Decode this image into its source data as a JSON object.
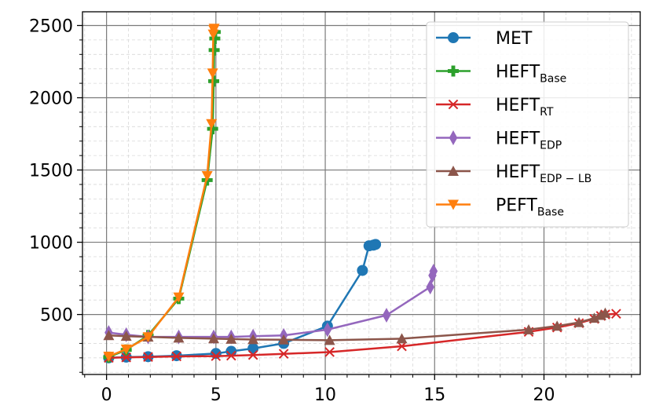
{
  "chart_data": {
    "type": "line",
    "title": "",
    "xlabel": "",
    "ylabel": "",
    "xlim": [
      -1.1,
      24.4
    ],
    "ylim": [
      85,
      2595
    ],
    "xticks": [
      0,
      5,
      10,
      15,
      20
    ],
    "yticks": [
      500,
      1000,
      1500,
      2000,
      2500
    ],
    "x_tick_labels": [
      "0",
      "5",
      "10",
      "15",
      "20"
    ],
    "y_tick_labels": [
      "500",
      "1000",
      "1500",
      "2000",
      "2500"
    ],
    "x_minor_step": 1,
    "y_minor_step": 100,
    "grid": true,
    "legend_position": "top-right",
    "series": [
      {
        "name": "MET",
        "name_sub": "",
        "color": "#1f77b4",
        "marker": "circle",
        "points": [
          [
            0.1,
            200
          ],
          [
            0.9,
            205
          ],
          [
            1.9,
            208
          ],
          [
            3.2,
            215
          ],
          [
            5.0,
            230
          ],
          [
            5.7,
            245
          ],
          [
            6.7,
            265
          ],
          [
            8.1,
            300
          ],
          [
            10.1,
            420
          ],
          [
            11.7,
            805
          ],
          [
            12.0,
            975
          ],
          [
            12.2,
            980
          ],
          [
            12.3,
            985
          ]
        ]
      },
      {
        "name": "HEFT",
        "name_sub": "Base",
        "color": "#2ca02c",
        "marker": "plus",
        "points": [
          [
            0.1,
            205
          ],
          [
            0.9,
            255
          ],
          [
            1.9,
            355
          ],
          [
            3.3,
            610
          ],
          [
            4.6,
            1430
          ],
          [
            4.85,
            1785
          ],
          [
            4.9,
            2115
          ],
          [
            4.92,
            2330
          ],
          [
            4.95,
            2410
          ],
          [
            4.97,
            2455
          ]
        ]
      },
      {
        "name": "HEFT",
        "name_sub": "RT",
        "color": "#d62728",
        "marker": "x",
        "points": [
          [
            0.1,
            200
          ],
          [
            0.9,
            203
          ],
          [
            1.9,
            206
          ],
          [
            3.2,
            210
          ],
          [
            5.0,
            212
          ],
          [
            5.7,
            215
          ],
          [
            6.7,
            220
          ],
          [
            8.1,
            228
          ],
          [
            10.2,
            240
          ],
          [
            13.5,
            280
          ],
          [
            19.3,
            380
          ],
          [
            20.6,
            410
          ],
          [
            21.6,
            440
          ],
          [
            22.3,
            470
          ],
          [
            22.6,
            490
          ],
          [
            22.8,
            500
          ],
          [
            23.3,
            505
          ]
        ]
      },
      {
        "name": "HEFT",
        "name_sub": "EDP",
        "color": "#9467bd",
        "marker": "diamond",
        "points": [
          [
            0.1,
            375
          ],
          [
            0.9,
            360
          ],
          [
            1.9,
            345
          ],
          [
            3.3,
            345
          ],
          [
            4.9,
            345
          ],
          [
            5.7,
            345
          ],
          [
            6.7,
            350
          ],
          [
            8.1,
            355
          ],
          [
            10.1,
            395
          ],
          [
            12.8,
            495
          ],
          [
            14.8,
            690
          ],
          [
            14.9,
            770
          ],
          [
            14.95,
            800
          ]
        ]
      },
      {
        "name": "HEFT",
        "name_sub": "EDP − LB",
        "color": "#8c564b",
        "marker": "triangle-up",
        "points": [
          [
            0.1,
            355
          ],
          [
            0.9,
            350
          ],
          [
            1.9,
            345
          ],
          [
            3.3,
            338
          ],
          [
            4.9,
            333
          ],
          [
            5.7,
            330
          ],
          [
            6.7,
            327
          ],
          [
            8.1,
            325
          ],
          [
            10.2,
            322
          ],
          [
            13.5,
            333
          ],
          [
            19.3,
            395
          ],
          [
            20.6,
            420
          ],
          [
            21.6,
            445
          ],
          [
            22.3,
            475
          ],
          [
            22.6,
            495
          ],
          [
            22.8,
            510
          ]
        ]
      },
      {
        "name": "PEFT",
        "name_sub": "Base",
        "color": "#ff7f0e",
        "marker": "triangle-down",
        "points": [
          [
            0.1,
            210
          ],
          [
            0.9,
            260
          ],
          [
            1.9,
            345
          ],
          [
            3.3,
            620
          ],
          [
            4.6,
            1460
          ],
          [
            4.8,
            1820
          ],
          [
            4.85,
            2170
          ],
          [
            4.88,
            2440
          ],
          [
            4.9,
            2470
          ],
          [
            4.92,
            2480
          ]
        ]
      }
    ]
  }
}
